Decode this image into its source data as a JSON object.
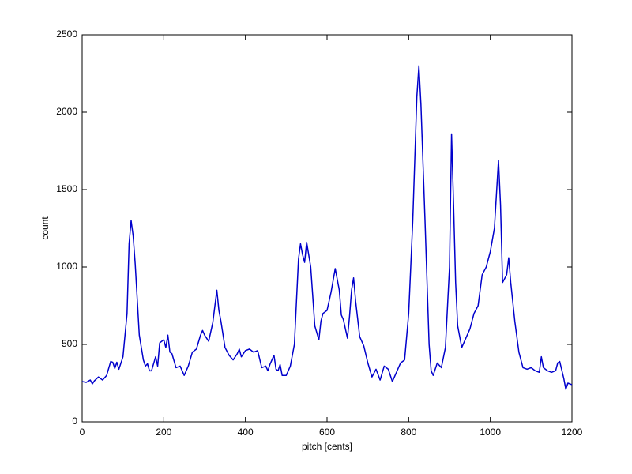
{
  "chart_data": {
    "type": "line",
    "xlabel": "pitch [cents]",
    "ylabel": "count",
    "x": [
      0,
      10,
      20,
      25,
      30,
      40,
      50,
      60,
      70,
      75,
      80,
      85,
      90,
      100,
      110,
      115,
      120,
      125,
      130,
      140,
      150,
      155,
      160,
      165,
      170,
      180,
      185,
      190,
      200,
      205,
      210,
      215,
      220,
      230,
      240,
      250,
      260,
      270,
      280,
      290,
      295,
      300,
      310,
      320,
      330,
      335,
      340,
      350,
      360,
      370,
      380,
      385,
      390,
      400,
      410,
      420,
      430,
      440,
      450,
      455,
      460,
      470,
      475,
      480,
      485,
      490,
      500,
      510,
      520,
      530,
      535,
      540,
      545,
      550,
      560,
      570,
      580,
      585,
      590,
      600,
      610,
      620,
      630,
      635,
      640,
      650,
      655,
      660,
      665,
      670,
      680,
      690,
      700,
      710,
      720,
      730,
      740,
      750,
      760,
      770,
      780,
      790,
      800,
      810,
      820,
      825,
      830,
      840,
      850,
      855,
      860,
      870,
      880,
      890,
      900,
      905,
      910,
      915,
      920,
      930,
      940,
      950,
      960,
      970,
      980,
      990,
      1000,
      1010,
      1020,
      1025,
      1030,
      1040,
      1045,
      1050,
      1060,
      1070,
      1080,
      1090,
      1100,
      1110,
      1120,
      1125,
      1130,
      1140,
      1150,
      1160,
      1165,
      1170,
      1180,
      1185,
      1190,
      1200
    ],
    "series": [
      {
        "color": "#0000cc",
        "values": [
          260,
          255,
          270,
          245,
          265,
          290,
          270,
          300,
          390,
          385,
          345,
          385,
          340,
          420,
          700,
          1150,
          1300,
          1200,
          1020,
          560,
          400,
          360,
          375,
          330,
          330,
          420,
          360,
          510,
          530,
          480,
          560,
          450,
          440,
          350,
          360,
          300,
          360,
          450,
          470,
          560,
          590,
          560,
          520,
          640,
          850,
          720,
          650,
          480,
          430,
          400,
          440,
          470,
          420,
          460,
          470,
          450,
          460,
          350,
          360,
          330,
          370,
          430,
          340,
          330,
          370,
          300,
          300,
          360,
          500,
          1050,
          1150,
          1080,
          1030,
          1160,
          1000,
          620,
          530,
          650,
          700,
          720,
          840,
          990,
          850,
          690,
          660,
          540,
          680,
          850,
          930,
          780,
          550,
          490,
          380,
          290,
          340,
          270,
          360,
          340,
          260,
          320,
          380,
          400,
          700,
          1300,
          2100,
          2300,
          2050,
          1300,
          500,
          330,
          300,
          380,
          350,
          480,
          1000,
          1860,
          1400,
          900,
          620,
          480,
          540,
          600,
          700,
          750,
          950,
          1000,
          1100,
          1250,
          1690,
          1400,
          900,
          950,
          1060,
          900,
          650,
          450,
          350,
          340,
          350,
          330,
          320,
          420,
          350,
          330,
          320,
          330,
          380,
          390,
          280,
          210,
          250,
          240
        ]
      }
    ],
    "xlim": [
      0,
      1200
    ],
    "xticks": [
      0,
      200,
      400,
      600,
      800,
      1000,
      1200
    ],
    "ylim": [
      0,
      2500
    ],
    "yticks": [
      0,
      500,
      1000,
      1500,
      2000,
      2500
    ]
  }
}
